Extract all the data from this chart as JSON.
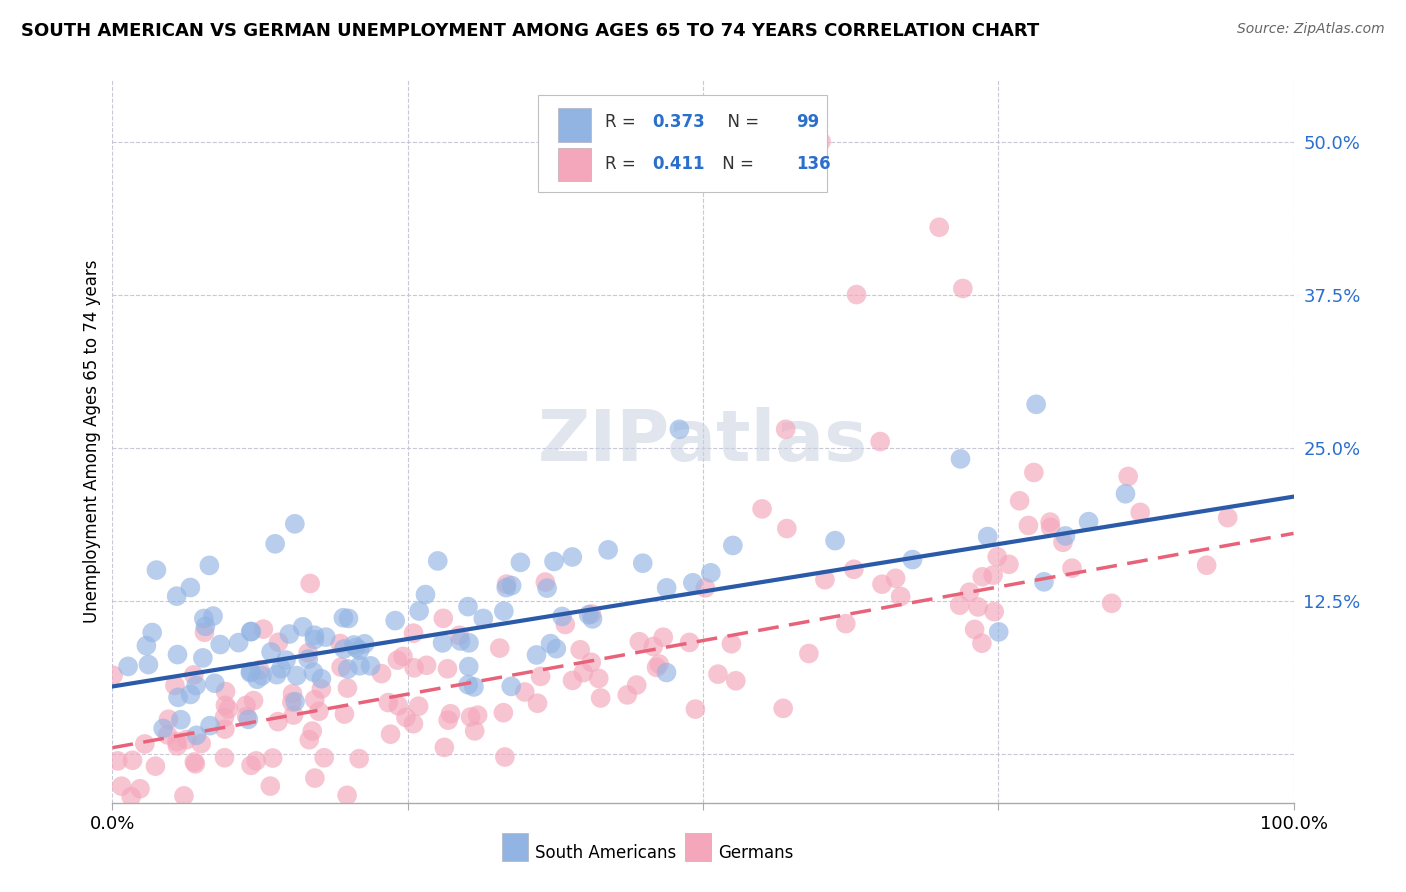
{
  "title": "SOUTH AMERICAN VS GERMAN UNEMPLOYMENT AMONG AGES 65 TO 74 YEARS CORRELATION CHART",
  "source": "Source: ZipAtlas.com",
  "ylabel": "Unemployment Among Ages 65 to 74 years",
  "xlim": [
    0,
    1
  ],
  "ylim": [
    -0.04,
    0.55
  ],
  "xticks": [
    0,
    0.25,
    0.5,
    0.75,
    1.0
  ],
  "xtick_labels": [
    "0.0%",
    "",
    "",
    "",
    "100.0%"
  ],
  "yticks": [
    0,
    0.125,
    0.25,
    0.375,
    0.5
  ],
  "ytick_labels": [
    "",
    "12.5%",
    "25.0%",
    "37.5%",
    "50.0%"
  ],
  "blue_R": 0.373,
  "blue_N": 99,
  "pink_R": 0.411,
  "pink_N": 136,
  "blue_color": "#92B4E3",
  "pink_color": "#F4A7BB",
  "blue_line_color": "#2B5BA8",
  "pink_line_color": "#E8637A",
  "text_blue_color": "#2B6FCC",
  "background_color": "#FFFFFF",
  "grid_color": "#C8C8D8",
  "watermark": "ZIPatlas",
  "blue_intercept": 0.055,
  "blue_slope": 0.155,
  "pink_intercept": 0.005,
  "pink_slope": 0.175,
  "seed_blue": 42,
  "seed_pink": 77,
  "n_blue": 99,
  "n_pink": 136
}
